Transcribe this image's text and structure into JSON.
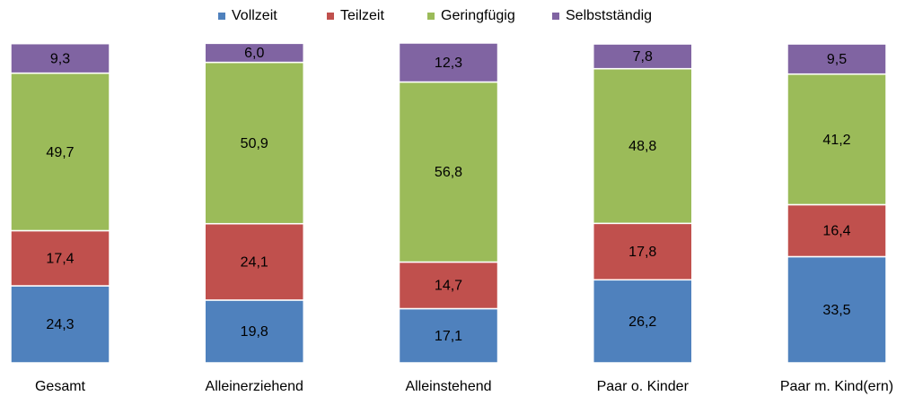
{
  "chart_data": {
    "type": "stacked_bar",
    "categories": [
      "Gesamt",
      "Alleinerziehend",
      "Alleinstehend",
      "Paar o. Kinder",
      "Paar m. Kind(ern)"
    ],
    "series": [
      {
        "name": "Vollzeit",
        "color": "#4f81bd",
        "values": [
          24.3,
          19.8,
          17.1,
          26.2,
          33.5
        ],
        "value_labels": [
          "24,3",
          "19,8",
          "17,1",
          "26,2",
          "33,5"
        ]
      },
      {
        "name": "Teilzeit",
        "color": "#c0504d",
        "values": [
          17.4,
          24.1,
          14.7,
          17.8,
          16.4
        ],
        "value_labels": [
          "17,4",
          "24,1",
          "14,7",
          "17,8",
          "16,4"
        ]
      },
      {
        "name": "Geringfügig",
        "color": "#9bbb59",
        "values": [
          49.7,
          50.9,
          56.8,
          48.8,
          41.2
        ],
        "value_labels": [
          "49,7",
          "50,9",
          "56,8",
          "48,8",
          "41,2"
        ]
      },
      {
        "name": "Selbstständig",
        "color": "#8064a2",
        "values": [
          9.3,
          6.0,
          12.3,
          7.8,
          9.5
        ],
        "value_labels": [
          "9,3",
          "6,0",
          "12,3",
          "7,8",
          "9,5"
        ]
      }
    ],
    "legend": "top"
  }
}
